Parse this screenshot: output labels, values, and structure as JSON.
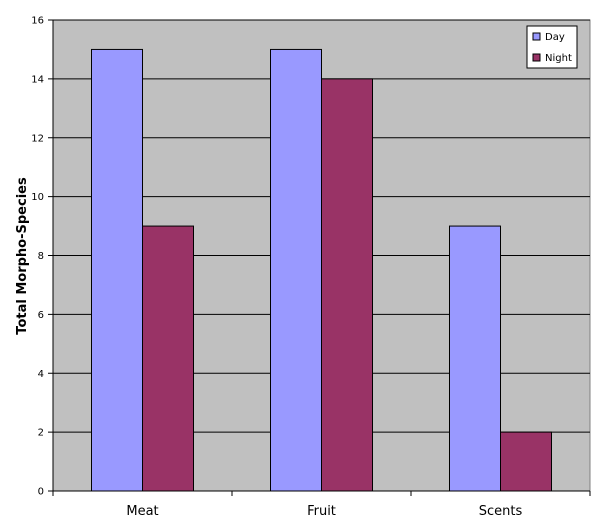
{
  "chart_data": {
    "type": "bar",
    "title": "",
    "xlabel": "",
    "ylabel": "Total Morpho-Species",
    "categories": [
      "Meat",
      "Fruit",
      "Scents"
    ],
    "series": [
      {
        "name": "Day",
        "values": [
          15,
          15,
          9
        ],
        "color": "#9999ff"
      },
      {
        "name": "Night",
        "values": [
          9,
          14,
          2
        ],
        "color": "#993366"
      }
    ],
    "ylim": [
      0,
      16
    ],
    "yticks": [
      0,
      2,
      4,
      6,
      8,
      10,
      12,
      14,
      16
    ],
    "grid": true,
    "plot_background": "#c0c0c0",
    "legend_position": "top-right"
  }
}
